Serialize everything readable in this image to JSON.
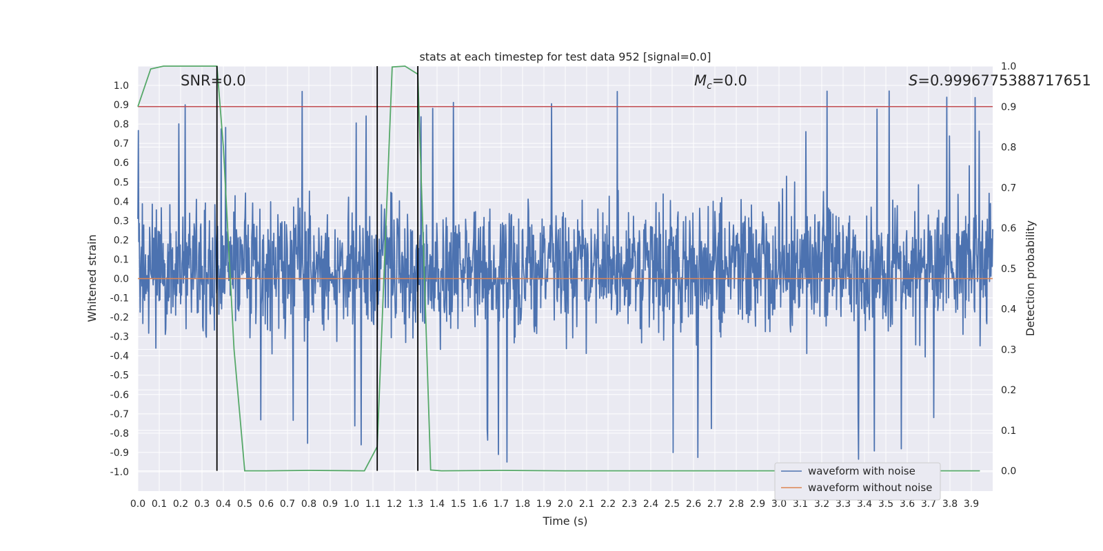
{
  "chart_data": {
    "type": "line",
    "title": "stats at each timestep for test data 952 [signal=0.0]",
    "xlabel": "Time (s)",
    "ylabel_left": "Whitened strain",
    "ylabel_right": "Detection probability",
    "xlim": [
      0.0,
      4.0
    ],
    "ylim_left": [
      -1.1,
      1.1
    ],
    "ylim_right": [
      -0.05,
      1.0
    ],
    "x_ticks": [
      "0.0",
      "0.1",
      "0.2",
      "0.3",
      "0.4",
      "0.5",
      "0.6",
      "0.7",
      "0.8",
      "0.9",
      "1.0",
      "1.1",
      "1.2",
      "1.3",
      "1.4",
      "1.5",
      "1.6",
      "1.7",
      "1.8",
      "1.9",
      "2.0",
      "2.1",
      "2.2",
      "2.3",
      "2.4",
      "2.5",
      "2.6",
      "2.7",
      "2.8",
      "2.9",
      "3.0",
      "3.1",
      "3.2",
      "3.3",
      "3.4",
      "3.5",
      "3.6",
      "3.7",
      "3.8",
      "3.9"
    ],
    "y_ticks_left": [
      "1.0",
      "0.9",
      "0.8",
      "0.7",
      "0.6",
      "0.5",
      "0.4",
      "0.3",
      "0.2",
      "0.1",
      "0.0",
      "-0.1",
      "-0.2",
      "-0.3",
      "-0.4",
      "-0.5",
      "-0.6",
      "-0.7",
      "-0.8",
      "-0.9",
      "-1.0"
    ],
    "y_ticks_right": [
      "1.0",
      "0.9",
      "0.8",
      "0.7",
      "0.6",
      "0.5",
      "0.4",
      "0.3",
      "0.2",
      "0.1",
      "0.0"
    ],
    "grid": true,
    "legend_position": "lower-right",
    "annotations": {
      "snr": "SNR=0.0",
      "mc_symbol": "M",
      "mc_sub": "c",
      "mc_value": "=0.0",
      "s_symbol": "S",
      "s_value": "=0.9996775388717651"
    },
    "series": [
      {
        "name": "waveform with noise",
        "axis": "left",
        "color": "#4c72b0",
        "style": "dense noise waveform spanning approximately -0.95 to 1.0, mostly between -0.5 and 0.65"
      },
      {
        "name": "waveform without noise",
        "axis": "left",
        "color": "#dd8452",
        "y": 0.0
      },
      {
        "axis": "right",
        "color": "#55a868",
        "x": [
          0.0,
          0.06,
          0.12,
          0.2,
          0.3,
          0.37,
          0.4,
          0.45,
          0.5,
          0.6,
          0.8,
          1.06,
          1.12,
          1.19,
          1.25,
          1.31,
          1.37,
          1.42,
          1.7,
          2.0,
          2.5,
          3.0,
          3.5,
          3.94
        ],
        "y": [
          0.9,
          0.993,
          1.0,
          1.0,
          1.0,
          1.0,
          0.8,
          0.3,
          0.0,
          0.0,
          0.001,
          0.0,
          0.06,
          0.998,
          1.0,
          0.98,
          0.002,
          0.0,
          0.001,
          0.0,
          0.0,
          0.0,
          0.0,
          0.0
        ]
      },
      {
        "axis": "right",
        "color": "#c44e52",
        "y": 0.9
      }
    ],
    "vlines": [
      0.37,
      1.12,
      1.31
    ],
    "vline_color": "#000000",
    "style": {
      "background": "#eaeaf2",
      "grid": "#ffffff"
    }
  }
}
